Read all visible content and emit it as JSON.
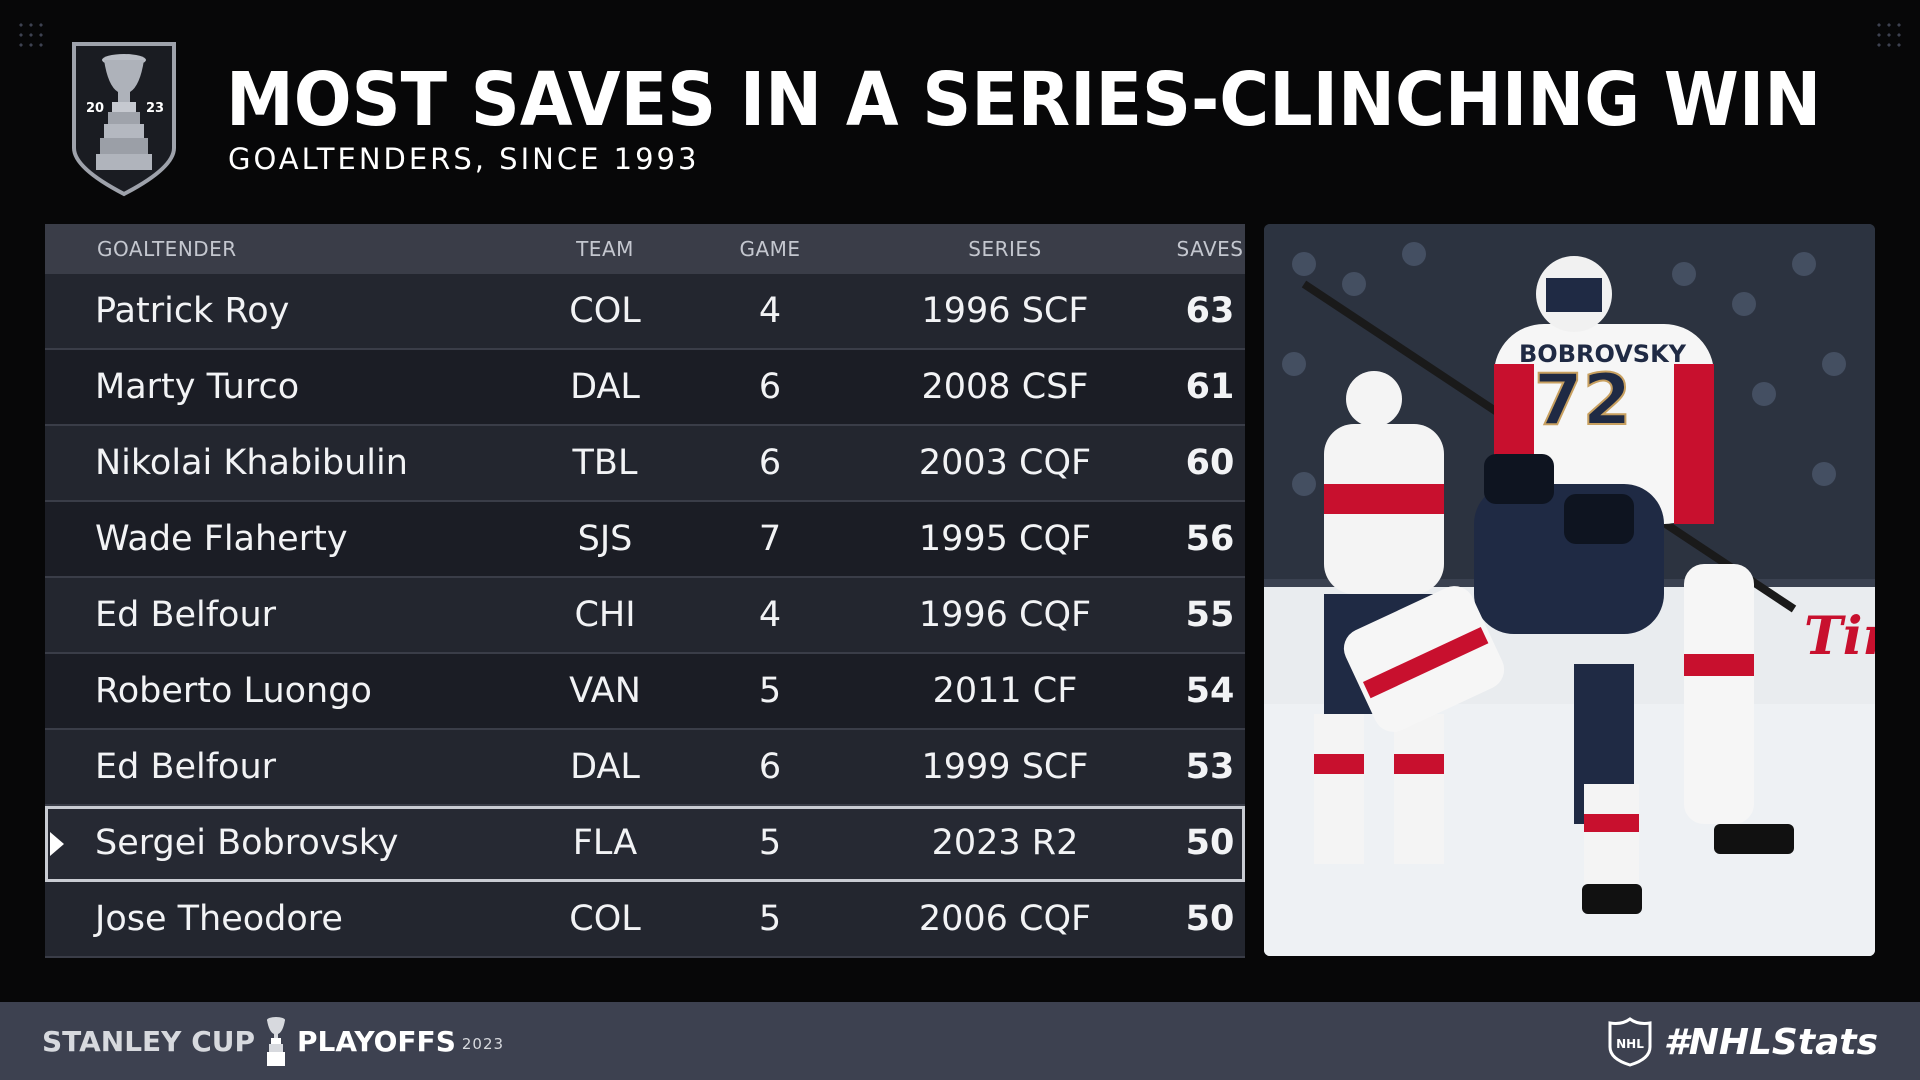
{
  "header": {
    "title": "MOST SAVES IN A SERIES-CLINCHING WIN",
    "subtitle": "GOALTENDERS, SINCE 1993",
    "logo_year_left": "20",
    "logo_year_right": "23"
  },
  "chart_data": {
    "type": "table",
    "columns": [
      "GOALTENDER",
      "TEAM",
      "GAME",
      "SERIES",
      "SAVES"
    ],
    "rows": [
      {
        "goaltender": "Patrick Roy",
        "team": "COL",
        "game": "4",
        "series": "1996 SCF",
        "saves": "63"
      },
      {
        "goaltender": "Marty Turco",
        "team": "DAL",
        "game": "6",
        "series": "2008 CSF",
        "saves": "61"
      },
      {
        "goaltender": "Nikolai Khabibulin",
        "team": "TBL",
        "game": "6",
        "series": "2003 CQF",
        "saves": "60"
      },
      {
        "goaltender": "Wade Flaherty",
        "team": "SJS",
        "game": "7",
        "series": "1995 CQF",
        "saves": "56"
      },
      {
        "goaltender": "Ed Belfour",
        "team": "CHI",
        "game": "4",
        "series": "1996 CQF",
        "saves": "55"
      },
      {
        "goaltender": "Roberto Luongo",
        "team": "VAN",
        "game": "5",
        "series": "2011 CF",
        "saves": "54"
      },
      {
        "goaltender": "Ed Belfour",
        "team": "DAL",
        "game": "6",
        "series": "1999 SCF",
        "saves": "53"
      },
      {
        "goaltender": "Sergei Bobrovsky",
        "team": "FLA",
        "game": "5",
        "series": "2023 R2",
        "saves": "50",
        "highlighted": true
      },
      {
        "goaltender": "Jose Theodore",
        "team": "COL",
        "game": "5",
        "series": "2006 CQF",
        "saves": "50"
      }
    ]
  },
  "photo": {
    "jersey_name": "BOBROVSKY",
    "jersey_number": "72",
    "ad_text": "Tim Ho"
  },
  "footer": {
    "brand_left": "STANLEY CUP",
    "brand_right": "PLAYOFFS",
    "brand_year": "2023",
    "hashtag": "#NHLStats",
    "nhl_logo_text": "NHL"
  },
  "colors": {
    "background": "#070708",
    "table_header": "#3a3d48",
    "row_dark": "#1b1d25",
    "row_light": "#23262f",
    "footer": "#3d4150",
    "highlight_border": "#c9ccd3",
    "panthers_red": "#c8102e"
  }
}
